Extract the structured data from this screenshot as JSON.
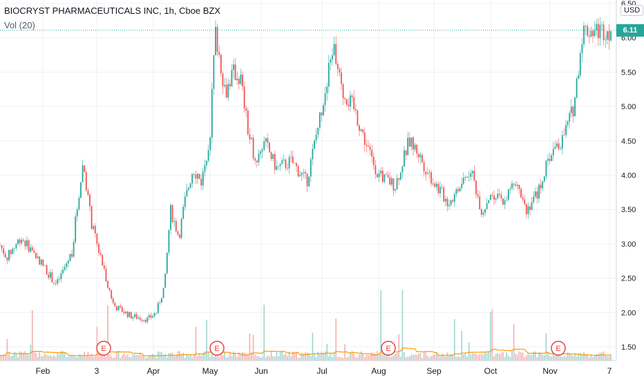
{
  "header": {
    "title": "BIOCRYST PHARMACEUTICALS INC, 1h, Cboe BZX",
    "indicator": "Vol (20)",
    "currency": "USD",
    "last_price": "6.11"
  },
  "colors": {
    "up": "#26a69a",
    "down": "#ef5350",
    "volume_up": "#a7d8d2",
    "volume_down": "#f6b7b5",
    "vol_ma": "#ff9800",
    "earnings": "#e53935",
    "grid": "#eef0f3",
    "axis_text": "#555b66"
  },
  "chart_data": {
    "type": "candlestick",
    "title": "BIOCRYST PHARMACEUTICALS INC, 1h, Cboe BZX",
    "x_tick_labels": [
      "Feb",
      "3",
      "Apr",
      "May",
      "Jun",
      "Jul",
      "Aug",
      "Sep",
      "Oct",
      "Nov",
      "7"
    ],
    "y_tick_labels": [
      "1.50",
      "2.00",
      "2.50",
      "3.00",
      "3.50",
      "4.00",
      "4.50",
      "5.00",
      "5.50",
      "6.00",
      "6.50"
    ],
    "ylim": [
      1.38,
      6.55
    ],
    "current_price": 6.11,
    "earnings_marker_label": "E",
    "earnings_markers": [
      "3",
      "May",
      "Aug",
      "Nov"
    ],
    "indicator": "Vol (20)",
    "price_path_months": [
      0.0,
      0.35,
      0.6,
      0.95,
      1.25,
      1.55,
      1.6,
      1.75,
      1.9,
      2.3,
      2.6,
      2.9,
      3.05,
      3.2,
      3.3,
      3.45,
      3.55,
      3.7,
      3.85,
      4.0,
      4.1,
      4.3,
      4.45,
      4.6,
      4.75,
      4.9,
      5.05,
      5.25,
      5.5,
      5.75,
      6.0,
      6.2,
      6.35,
      6.55,
      6.8,
      7.0,
      7.3,
      7.55,
      7.7,
      7.85,
      8.0,
      8.25,
      8.45,
      8.65,
      8.85,
      9.0,
      9.2,
      9.45,
      9.6,
      9.8,
      10.0,
      10.2,
      10.4,
      10.55
    ],
    "price_path_values": [
      3.3,
      2.8,
      3.1,
      2.75,
      2.4,
      2.9,
      3.3,
      4.2,
      3.3,
      2.1,
      1.95,
      1.9,
      2.0,
      2.4,
      3.5,
      3.1,
      3.6,
      4.1,
      3.9,
      4.6,
      6.1,
      5.2,
      5.5,
      5.4,
      4.6,
      4.2,
      4.5,
      4.1,
      4.2,
      3.9,
      5.0,
      5.9,
      5.2,
      5.0,
      4.4,
      4.0,
      3.85,
      4.5,
      4.35,
      4.1,
      3.9,
      3.6,
      3.8,
      4.1,
      3.45,
      3.75,
      3.6,
      3.95,
      3.5,
      3.75,
      4.3,
      4.5,
      5.0,
      6.11
    ]
  }
}
